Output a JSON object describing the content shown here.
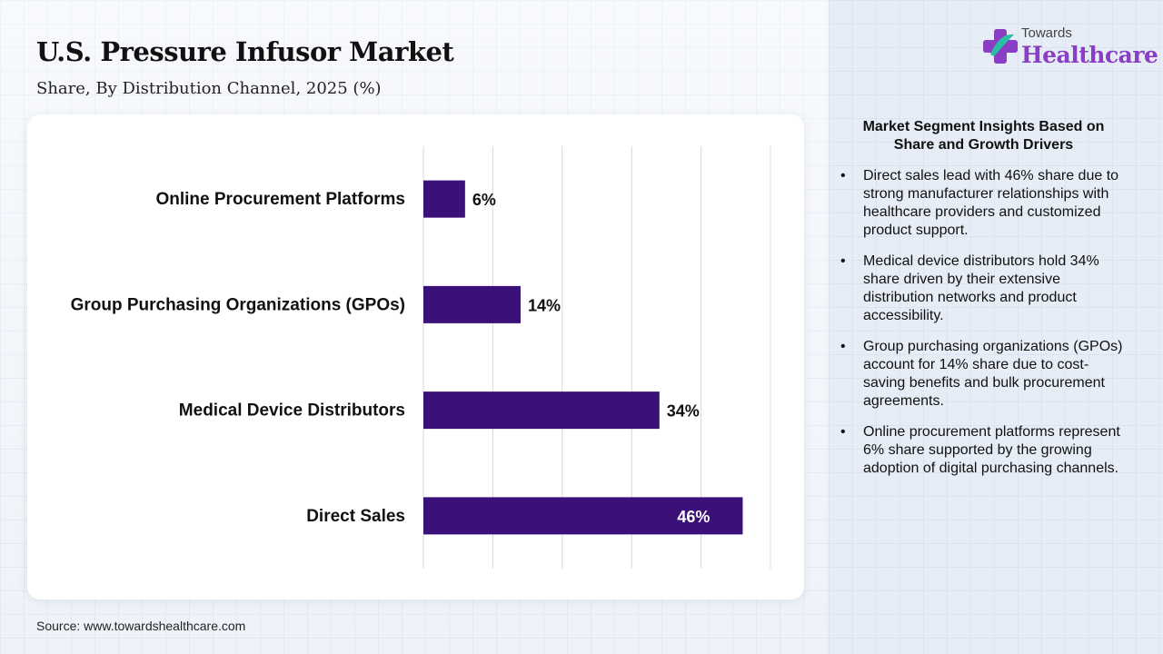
{
  "header": {
    "title": "U.S. Pressure Infusor Market",
    "subtitle": "Share, By Distribution Channel, 2025 (%)"
  },
  "chart_data": {
    "type": "bar",
    "orientation": "horizontal",
    "categories": [
      "Online Procurement Platforms",
      "Group Purchasing Organizations (GPOs)",
      "Medical Device Distributors",
      "Direct Sales"
    ],
    "values": [
      6,
      14,
      34,
      46
    ],
    "data_labels": [
      "6%",
      "14%",
      "34%",
      "46%"
    ],
    "xlim": [
      0,
      50
    ],
    "grid": true,
    "bar_color": "#3b1078"
  },
  "source": "Source: www.towardshealthcare.com",
  "logo": {
    "small_text": "Towards",
    "big_text": "Healthcare"
  },
  "insights": {
    "title": "Market Segment Insights Based on Share and Growth Drivers",
    "items": [
      "Direct sales lead with 46% share due to strong manufacturer relationships with healthcare providers and customized product support.",
      "Medical device distributors hold 34% share driven by their extensive distribution networks and product accessibility.",
      "Group purchasing organizations (GPOs) account for 14% share due to cost-saving benefits and bulk procurement agreements.",
      "Online procurement platforms represent 6% share supported by the growing adoption of digital purchasing channels."
    ]
  }
}
